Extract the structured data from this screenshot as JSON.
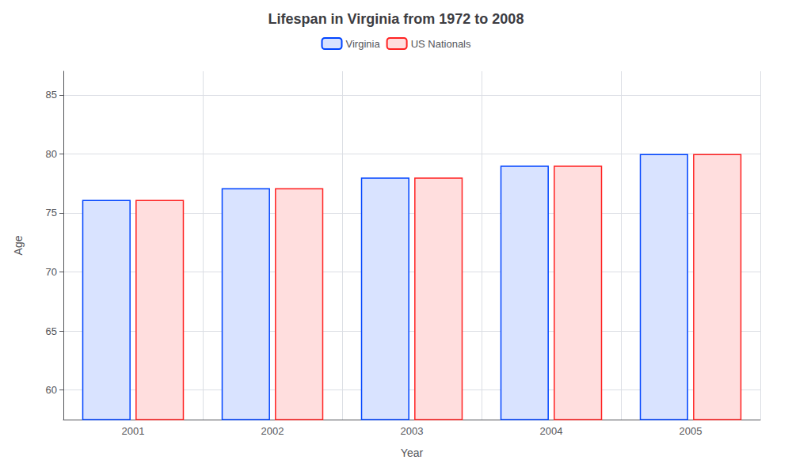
{
  "chart_data": {
    "type": "bar",
    "title": "Lifespan in Virginia from 1972 to 2008",
    "xlabel": "Year",
    "ylabel": "Age",
    "categories": [
      "2001",
      "2002",
      "2003",
      "2004",
      "2005"
    ],
    "series": [
      {
        "name": "Virginia",
        "color": "#0044ff",
        "values": [
          76.1,
          77.1,
          78.0,
          79.0,
          80.0
        ]
      },
      {
        "name": "US Nationals",
        "color": "#ff2222",
        "values": [
          76.1,
          77.1,
          78.0,
          79.0,
          80.0
        ]
      }
    ],
    "ylim": [
      57.5,
      87
    ],
    "yticks": [
      60,
      65,
      70,
      75,
      80,
      85
    ],
    "grid": true,
    "legend": "top"
  }
}
